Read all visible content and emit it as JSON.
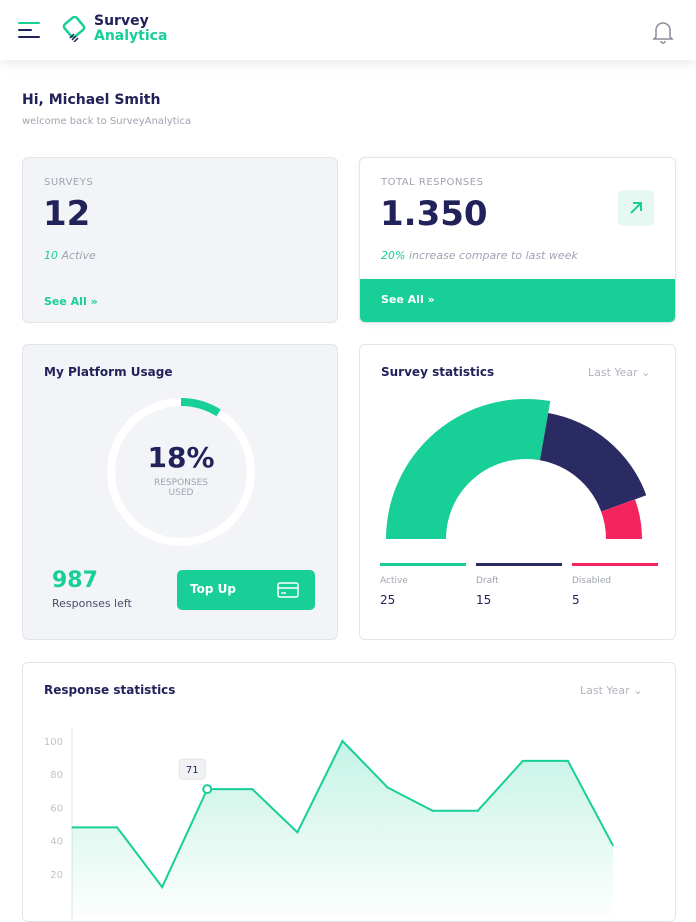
{
  "header": {
    "brand_line1": "Survey",
    "brand_line2": "Analytica"
  },
  "greeting": {
    "title": "Hi, Michael Smith",
    "subtitle": "welcome back to SurveyAnalytica"
  },
  "surveys_card": {
    "label": "SURVEYS",
    "value": "12",
    "active_count": "10",
    "active_label": "Active",
    "see_all": "See All"
  },
  "responses_card": {
    "label": "TOTAL RESPONSES",
    "value": "1.350",
    "increase": "20%",
    "increase_text": "increase compare to last week",
    "see_all": "See All"
  },
  "usage_card": {
    "title": "My Platform Usage",
    "percent": "18%",
    "percent_value": 18,
    "used_label_1": "RESPONSES",
    "used_label_2": "USED",
    "left_value": "987",
    "left_label": "Responses left",
    "topup": "Top Up"
  },
  "survey_stats": {
    "title": "Survey statistics",
    "period": "Last Year",
    "items": [
      {
        "label": "Active",
        "value": "25",
        "color": "#17cf97"
      },
      {
        "label": "Draft",
        "value": "15",
        "color": "#2b2b63"
      },
      {
        "label": "Disabled",
        "value": "5",
        "color": "#f5245e"
      }
    ]
  },
  "chart_data": {
    "type": "area",
    "title": "Response statistics",
    "period": "Last Year",
    "y_ticks": [
      "100",
      "80",
      "60",
      "40",
      "20"
    ],
    "ylim": [
      0,
      100
    ],
    "values": [
      48,
      48,
      12,
      71,
      71,
      45,
      100,
      72,
      58,
      58,
      88,
      88,
      37
    ],
    "highlight_index": 3,
    "tooltip": "71"
  },
  "colors": {
    "accent": "#17cf97",
    "navy": "#22225a",
    "red": "#f5245e"
  }
}
